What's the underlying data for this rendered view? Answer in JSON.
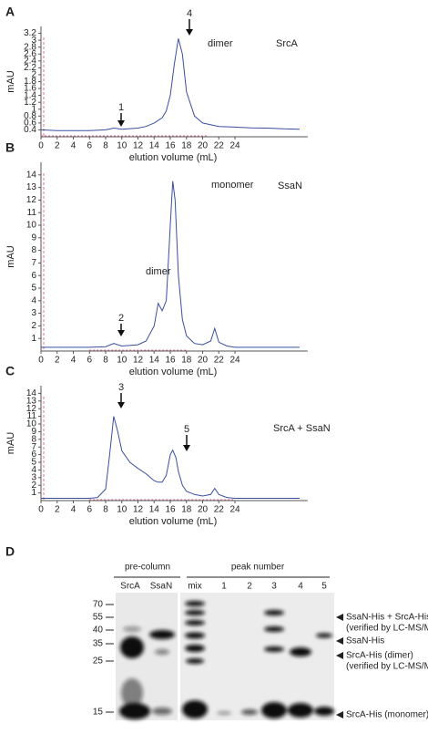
{
  "chart_data": [
    {
      "type": "line",
      "panel": "A",
      "ylabel": "mAU",
      "xlabel": "elution volume (mL)",
      "color": "#3a4fa0",
      "x": [
        0,
        2,
        4,
        6,
        8,
        9,
        10,
        12,
        13,
        14,
        15,
        15.5,
        16,
        16.5,
        17,
        17.5,
        18,
        19,
        20,
        22,
        24,
        26,
        28,
        30,
        32
      ],
      "values": [
        0.4,
        0.38,
        0.38,
        0.38,
        0.4,
        0.45,
        0.42,
        0.45,
        0.5,
        0.6,
        0.75,
        0.95,
        1.4,
        2.3,
        3.05,
        2.6,
        1.5,
        0.8,
        0.6,
        0.5,
        0.48,
        0.46,
        0.45,
        0.43,
        0.42
      ],
      "xlim": [
        0,
        33
      ],
      "ylim": [
        0.2,
        3.4
      ],
      "xticks": [
        0,
        2,
        4,
        6,
        8,
        10,
        12,
        14,
        16,
        18,
        20,
        22,
        24
      ],
      "yticks": [
        0.4,
        0.6,
        0.8,
        1.0,
        1.2,
        1.4,
        1.6,
        1.8,
        2.0,
        2.2,
        2.4,
        2.6,
        2.8,
        3.0,
        3.2
      ],
      "annotations": [
        "1",
        "4",
        "dimer",
        "SrcA"
      ]
    },
    {
      "type": "line",
      "panel": "B",
      "ylabel": "mAU",
      "xlabel": "elution volume (mL)",
      "color": "#3a4fa0",
      "x": [
        0,
        2,
        4,
        6,
        8,
        9,
        10,
        12,
        13,
        14,
        14.5,
        15,
        15.5,
        16,
        16.3,
        16.6,
        17,
        17.5,
        18,
        19,
        20,
        21,
        21.5,
        22,
        23,
        24,
        26,
        28,
        30,
        32
      ],
      "values": [
        0.3,
        0.3,
        0.3,
        0.3,
        0.35,
        0.6,
        0.4,
        0.5,
        0.8,
        2,
        3.8,
        3.2,
        4,
        10,
        13.5,
        12,
        6,
        2.5,
        1.2,
        0.6,
        0.5,
        0.8,
        1.8,
        0.7,
        0.4,
        0.3,
        0.3,
        0.3,
        0.3,
        0.3
      ],
      "xlim": [
        0,
        33
      ],
      "ylim": [
        0,
        15
      ],
      "xticks": [
        0,
        2,
        4,
        6,
        8,
        10,
        12,
        14,
        16,
        18,
        20,
        22,
        24
      ],
      "yticks": [
        1,
        2,
        3,
        4,
        5,
        6,
        7,
        8,
        9,
        10,
        11,
        12,
        13,
        14
      ],
      "annotations": [
        "2",
        "dimer",
        "monomer",
        "SsaN"
      ]
    },
    {
      "type": "line",
      "panel": "C",
      "ylabel": "mAU",
      "xlabel": "elution volume (mL)",
      "color": "#3a4fa0",
      "x": [
        0,
        4,
        6,
        7,
        8,
        8.5,
        9,
        9.5,
        10,
        11,
        12,
        13,
        14,
        14.5,
        15,
        15.5,
        16,
        16.3,
        16.7,
        17,
        17.5,
        18,
        19,
        20,
        21,
        21.5,
        22,
        23,
        24,
        28,
        32
      ],
      "values": [
        0.3,
        0.3,
        0.3,
        0.4,
        1.5,
        6,
        11,
        9,
        6.5,
        5,
        4.2,
        3.5,
        2.6,
        2.4,
        2.4,
        3.3,
        6,
        6.6,
        5.6,
        3.8,
        2,
        1.2,
        0.8,
        0.6,
        0.8,
        1.6,
        0.8,
        0.4,
        0.3,
        0.3,
        0.3
      ],
      "xlim": [
        0,
        33
      ],
      "ylim": [
        0,
        15
      ],
      "xticks": [
        0,
        2,
        4,
        6,
        8,
        10,
        12,
        14,
        16,
        18,
        20,
        22,
        24
      ],
      "yticks": [
        1,
        2,
        3,
        4,
        5,
        6,
        7,
        8,
        9,
        10,
        11,
        12,
        13,
        14
      ],
      "annotations": [
        "3",
        "5",
        "SrcA + SsaN"
      ]
    }
  ],
  "gel": {
    "panel": "D",
    "groups": [
      "pre-column",
      "peak number"
    ],
    "lanes": [
      "SrcA",
      "SsaN",
      "mix",
      "1",
      "2",
      "3",
      "4",
      "5"
    ],
    "markers": [
      "70",
      "55",
      "40",
      "35",
      "25",
      "15"
    ],
    "bands": [
      "SsaN-His + SrcA-His",
      "(verified by LC-MS/MS)",
      "SsaN-His",
      "SrcA-His (dimer)",
      "(verified by LC-MS/MS)",
      "SrcA-His (monomer)"
    ]
  }
}
